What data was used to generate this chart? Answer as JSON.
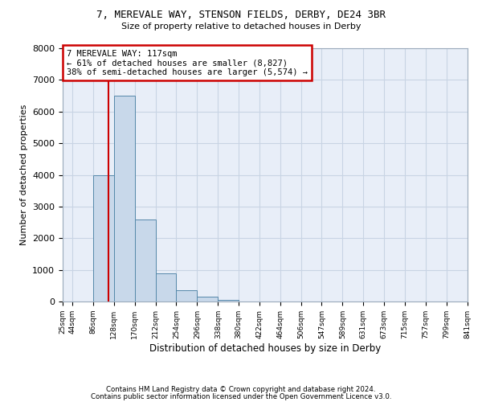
{
  "title1": "7, MEREVALE WAY, STENSON FIELDS, DERBY, DE24 3BR",
  "title2": "Size of property relative to detached houses in Derby",
  "xlabel": "Distribution of detached houses by size in Derby",
  "ylabel": "Number of detached properties",
  "bin_edges": [
    25,
    44,
    86,
    128,
    170,
    212,
    254,
    296,
    338,
    380,
    422,
    464,
    506,
    547,
    589,
    631,
    673,
    715,
    757,
    799,
    841
  ],
  "bar_heights": [
    0,
    0,
    4000,
    6500,
    2600,
    900,
    350,
    150,
    50,
    0,
    0,
    0,
    0,
    0,
    0,
    0,
    0,
    0,
    0,
    0
  ],
  "bar_color": "#c8d8ea",
  "bar_edge_color": "#5588aa",
  "property_size": 117,
  "annotation_text": "7 MEREVALE WAY: 117sqm\n← 61% of detached houses are smaller (8,827)\n38% of semi-detached houses are larger (5,574) →",
  "annotation_box_color": "#ffffff",
  "annotation_border_color": "#cc0000",
  "vline_color": "#cc0000",
  "grid_color": "#c8d4e4",
  "background_color": "#e8eef8",
  "footer1": "Contains HM Land Registry data © Crown copyright and database right 2024.",
  "footer2": "Contains public sector information licensed under the Open Government Licence v3.0.",
  "ylim": [
    0,
    8000
  ],
  "yticks": [
    0,
    1000,
    2000,
    3000,
    4000,
    5000,
    6000,
    7000,
    8000
  ]
}
